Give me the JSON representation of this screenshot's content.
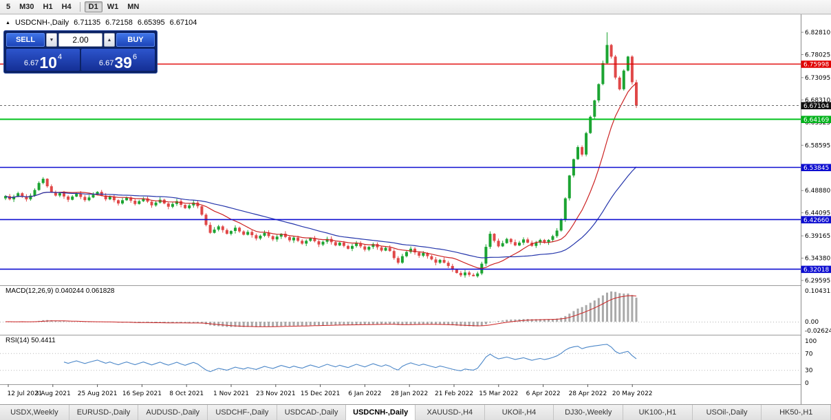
{
  "toolbar": {
    "groups": [
      [
        "5",
        "M30",
        "H1",
        "H4"
      ],
      [
        "D1",
        "W1",
        "MN"
      ]
    ],
    "active": "D1"
  },
  "header": {
    "marker_icon": "▲",
    "symbol": "USDCNH-,Daily",
    "open": "6.71135",
    "high": "6.72158",
    "low": "6.65395",
    "close": "6.67104"
  },
  "trade_panel": {
    "sell_label": "SELL",
    "buy_label": "BUY",
    "volume": "2.00",
    "spinner_down_icon": "▼",
    "spinner_up_icon": "▲",
    "sell_price": {
      "prefix": "6.67",
      "big": "10",
      "sup": "4"
    },
    "buy_price": {
      "prefix": "6.67",
      "big": "39",
      "sup": "6"
    }
  },
  "price_axis": {
    "labels": [
      "6.82810",
      "6.78025",
      "6.73095",
      "6.68310",
      "6.63525",
      "6.58595",
      "6.53810",
      "6.48880",
      "6.44095",
      "6.39165",
      "6.34380",
      "6.29595"
    ],
    "badges": [
      {
        "text": "6.75998",
        "price": 6.75998,
        "color": "#e00000"
      },
      {
        "text": "6.67104",
        "price": 6.67104,
        "color": "#101010"
      },
      {
        "text": "6.64169",
        "price": 6.64169,
        "color": "#00b21a"
      },
      {
        "text": "6.53845",
        "price": 6.53845,
        "color": "#0d0dd0"
      },
      {
        "text": "6.42660",
        "price": 6.4266,
        "color": "#0d0dd0"
      },
      {
        "text": "6.32018",
        "price": 6.32018,
        "color": "#0d0dd0"
      }
    ]
  },
  "indicators": {
    "macd": {
      "label": "MACD(12,26,9) 0.040244 0.061828",
      "axis_labels": [
        "0.104313",
        "0.00",
        "-0.026240"
      ]
    },
    "rsi": {
      "label": "RSI(14) 50.4411",
      "axis_labels": [
        "100",
        "70",
        "30",
        "0"
      ]
    }
  },
  "date_axis": {
    "labels": [
      "12 Jul 2021",
      "3 Aug 2021",
      "25 Aug 2021",
      "16 Sep 2021",
      "8 Oct 2021",
      "1 Nov 2021",
      "23 Nov 2021",
      "15 Dec 2021",
      "6 Jan 2022",
      "28 Jan 2022",
      "21 Feb 2022",
      "15 Mar 2022",
      "6 Apr 2022",
      "28 Apr 2022",
      "20 May 2022"
    ]
  },
  "tabs": {
    "active": "USDCNH-,Daily",
    "items": [
      "USDX,Weekly",
      "EURUSD-,Daily",
      "AUDUSD-,Daily",
      "USDCHF-,Daily",
      "USDCAD-,Daily",
      "USDCNH-,Daily",
      "XAUUSD-,H4",
      "UKOil-,H4",
      "DJ30-,Weekly",
      "UK100-,H1",
      "USOil-,Daily",
      "HK50-,H1"
    ]
  },
  "chart_data": {
    "type": "candlestick",
    "symbol": "USDCNH",
    "timeframe": "Daily",
    "current_ohlc": {
      "open": 6.71135,
      "high": 6.72158,
      "low": 6.65395,
      "close": 6.67104
    },
    "first_open": 6.472,
    "closes": [
      6.477,
      6.47,
      6.476,
      6.483,
      6.476,
      6.47,
      6.478,
      6.49,
      6.505,
      6.514,
      6.498,
      6.485,
      6.478,
      6.483,
      6.476,
      6.469,
      6.476,
      6.482,
      6.475,
      6.468,
      6.474,
      6.48,
      6.486,
      6.478,
      6.47,
      6.476,
      6.468,
      6.461,
      6.468,
      6.474,
      6.467,
      6.46,
      6.466,
      6.472,
      6.465,
      6.457,
      6.463,
      6.469,
      6.461,
      6.454,
      6.46,
      6.466,
      6.458,
      6.451,
      6.457,
      6.463,
      6.455,
      6.437,
      6.415,
      6.398,
      6.405,
      6.412,
      6.404,
      6.396,
      6.402,
      6.409,
      6.401,
      6.394,
      6.4,
      6.393,
      6.386,
      6.392,
      6.398,
      6.391,
      6.384,
      6.39,
      6.396,
      6.389,
      6.382,
      6.388,
      6.381,
      6.375,
      6.381,
      6.387,
      6.38,
      6.373,
      6.379,
      6.385,
      6.378,
      6.371,
      6.377,
      6.37,
      6.364,
      6.37,
      6.376,
      6.369,
      6.362,
      6.368,
      6.374,
      6.367,
      6.36,
      6.366,
      6.359,
      6.344,
      6.334,
      6.348,
      6.357,
      6.364,
      6.356,
      6.349,
      6.355,
      6.348,
      6.341,
      6.334,
      6.34,
      6.334,
      6.327,
      6.319,
      6.312,
      6.307,
      6.313,
      6.308,
      6.305,
      6.311,
      6.332,
      6.368,
      6.396,
      6.381,
      6.369,
      6.376,
      6.385,
      6.378,
      6.371,
      6.377,
      6.384,
      6.377,
      6.37,
      6.377,
      6.383,
      6.377,
      6.383,
      6.391,
      6.403,
      6.426,
      6.472,
      6.521,
      6.556,
      6.582,
      6.566,
      6.612,
      6.647,
      6.682,
      6.717,
      6.762,
      6.801,
      6.776,
      6.731,
      6.706,
      6.746,
      6.776,
      6.721,
      6.67104
    ],
    "peak_index": 144,
    "peak_high": 6.8281,
    "trough_index": 112,
    "trough_low": 6.3047,
    "current_price": 6.67104,
    "hlines": [
      {
        "price": 6.75998,
        "color": "#e00000",
        "width": 1.4,
        "role": "resistance"
      },
      {
        "price": 6.64169,
        "color": "#00c21c",
        "width": 2,
        "role": "support"
      },
      {
        "price": 6.53845,
        "color": "#0d0dd0",
        "width": 1.6,
        "role": "support"
      },
      {
        "price": 6.4266,
        "color": "#0d0dd0",
        "width": 1.6,
        "role": "support"
      },
      {
        "price": 6.32018,
        "color": "#0d0dd0",
        "width": 1.6,
        "role": "support"
      }
    ],
    "ma": [
      {
        "period": 13,
        "color": "#cc2222"
      },
      {
        "period": 33,
        "color": "#2233aa"
      }
    ],
    "macd": {
      "fast": 12,
      "slow": 26,
      "signal": 9,
      "display_max": 0.104313,
      "value": 0.040244,
      "signal_value": 0.061828
    },
    "rsi": {
      "period": 14,
      "value": 50.4411,
      "levels": [
        70,
        30
      ]
    },
    "y_axis_ticks": [
      6.8281,
      6.78025,
      6.73095,
      6.6831,
      6.63525,
      6.58595,
      6.5381,
      6.4888,
      6.44095,
      6.39165,
      6.3438,
      6.29595
    ]
  }
}
